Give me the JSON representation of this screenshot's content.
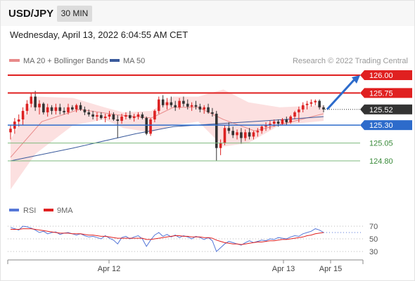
{
  "header": {
    "symbol": "USD/JPY",
    "timeframe": "30 MIN"
  },
  "datetime": "Wednesday, April 13, 2022 6:04:55 AM CET",
  "legend": {
    "ma20": "MA 20 + Bollinger Bands",
    "ma50": "MA 50"
  },
  "copyright": "Research © 2022 Trading Central",
  "colors": {
    "bull": "#dd2222",
    "bear": "#333333",
    "ma50": "#3a5a9c",
    "ma20": "#e88a8a",
    "band": "#fbdada",
    "resistance": "#e02020",
    "support": "#2d6bcb",
    "secondary": "#7cba7c",
    "current": "#333333",
    "rsi": "#5577d8",
    "ma9": "#e02020"
  },
  "chart_data": [
    {
      "type": "line",
      "price_levels": [
        {
          "value": 126.0,
          "label": "126.00",
          "role": "target"
        },
        {
          "value": 125.75,
          "label": "125.75",
          "role": "resistance"
        },
        {
          "value": 125.52,
          "label": "125.52",
          "role": "last price"
        },
        {
          "value": 125.3,
          "label": "125.30",
          "role": "pivot"
        },
        {
          "value": 125.05,
          "label": "125.05",
          "role": "support"
        },
        {
          "value": 124.8,
          "label": "124.80",
          "role": "support"
        }
      ],
      "x_ticks": [
        "Apr 12",
        "Apr 13",
        "Apr 15"
      ],
      "candles": [
        [
          125.2,
          125.3,
          125.1,
          125.25
        ],
        [
          125.25,
          125.4,
          125.18,
          125.35
        ],
        [
          125.35,
          125.45,
          125.28,
          125.38
        ],
        [
          125.38,
          125.55,
          125.3,
          125.5
        ],
        [
          125.5,
          125.65,
          125.45,
          125.6
        ],
        [
          125.6,
          125.75,
          125.55,
          125.7
        ],
        [
          125.7,
          125.78,
          125.5,
          125.55
        ],
        [
          125.55,
          125.65,
          125.45,
          125.6
        ],
        [
          125.6,
          125.62,
          125.45,
          125.48
        ],
        [
          125.48,
          125.6,
          125.42,
          125.55
        ],
        [
          125.55,
          125.58,
          125.45,
          125.5
        ],
        [
          125.5,
          125.6,
          125.45,
          125.55
        ],
        [
          125.55,
          125.6,
          125.45,
          125.5
        ],
        [
          125.5,
          125.55,
          125.45,
          125.48
        ],
        [
          125.48,
          125.6,
          125.45,
          125.55
        ],
        [
          125.55,
          125.58,
          125.5,
          125.52
        ],
        [
          125.52,
          125.6,
          125.48,
          125.58
        ],
        [
          125.58,
          125.62,
          125.5,
          125.52
        ],
        [
          125.52,
          125.56,
          125.44,
          125.48
        ],
        [
          125.48,
          125.52,
          125.42,
          125.45
        ],
        [
          125.45,
          125.5,
          125.38,
          125.42
        ],
        [
          125.42,
          125.48,
          125.36,
          125.44
        ],
        [
          125.44,
          125.48,
          125.38,
          125.4
        ],
        [
          125.4,
          125.46,
          125.34,
          125.42
        ],
        [
          125.42,
          125.5,
          125.38,
          125.45
        ],
        [
          125.45,
          125.48,
          125.36,
          125.38
        ],
        [
          125.38,
          125.44,
          125.12,
          125.36
        ],
        [
          125.36,
          125.46,
          125.32,
          125.42
        ],
        [
          125.42,
          125.48,
          125.38,
          125.44
        ],
        [
          125.44,
          125.5,
          125.38,
          125.4
        ],
        [
          125.4,
          125.46,
          125.35,
          125.42
        ],
        [
          125.42,
          125.48,
          125.38,
          125.45
        ],
        [
          125.45,
          125.48,
          125.38,
          125.4
        ],
        [
          125.4,
          125.42,
          125.16,
          125.18
        ],
        [
          125.18,
          125.4,
          125.15,
          125.38
        ],
        [
          125.38,
          125.52,
          125.34,
          125.5
        ],
        [
          125.5,
          125.7,
          125.46,
          125.66
        ],
        [
          125.66,
          125.72,
          125.55,
          125.58
        ],
        [
          125.58,
          125.68,
          125.52,
          125.62
        ],
        [
          125.62,
          125.7,
          125.55,
          125.58
        ],
        [
          125.58,
          125.64,
          125.5,
          125.55
        ],
        [
          125.55,
          125.68,
          125.52,
          125.64
        ],
        [
          125.64,
          125.7,
          125.56,
          125.6
        ],
        [
          125.6,
          125.66,
          125.52,
          125.56
        ],
        [
          125.56,
          125.62,
          125.5,
          125.58
        ],
        [
          125.58,
          125.64,
          125.52,
          125.56
        ],
        [
          125.56,
          125.6,
          125.48,
          125.52
        ],
        [
          125.52,
          125.58,
          125.46,
          125.55
        ],
        [
          125.55,
          125.6,
          125.46,
          125.48
        ],
        [
          125.48,
          125.54,
          125.42,
          125.46
        ],
        [
          125.46,
          125.5,
          124.8,
          124.98
        ],
        [
          124.98,
          125.1,
          124.88,
          125.05
        ],
        [
          125.05,
          125.3,
          125.02,
          125.26
        ],
        [
          125.26,
          125.34,
          125.18,
          125.22
        ],
        [
          125.22,
          125.28,
          125.12,
          125.16
        ],
        [
          125.16,
          125.24,
          125.1,
          125.2
        ],
        [
          125.2,
          125.26,
          125.04,
          125.12
        ],
        [
          125.12,
          125.24,
          125.08,
          125.2
        ],
        [
          125.2,
          125.26,
          125.1,
          125.14
        ],
        [
          125.14,
          125.22,
          125.1,
          125.2
        ],
        [
          125.2,
          125.26,
          125.14,
          125.22
        ],
        [
          125.22,
          125.3,
          125.18,
          125.28
        ],
        [
          125.28,
          125.34,
          125.22,
          125.3
        ],
        [
          125.3,
          125.36,
          125.24,
          125.32
        ],
        [
          125.32,
          125.38,
          125.28,
          125.35
        ],
        [
          125.35,
          125.38,
          125.28,
          125.32
        ],
        [
          125.32,
          125.4,
          125.3,
          125.38
        ],
        [
          125.38,
          125.42,
          125.3,
          125.34
        ],
        [
          125.34,
          125.44,
          125.32,
          125.42
        ],
        [
          125.42,
          125.5,
          125.38,
          125.48
        ],
        [
          125.48,
          125.56,
          125.34,
          125.52
        ],
        [
          125.52,
          125.62,
          125.48,
          125.58
        ],
        [
          125.58,
          125.64,
          125.52,
          125.6
        ],
        [
          125.6,
          125.66,
          125.56,
          125.62
        ],
        [
          125.62,
          125.66,
          125.58,
          125.64
        ],
        [
          125.64,
          125.66,
          125.52,
          125.55
        ],
        [
          125.55,
          125.58,
          125.48,
          125.52
        ]
      ],
      "ma50_points": [
        [
          0,
          124.8
        ],
        [
          0.2,
          124.98
        ],
        [
          0.4,
          125.18
        ],
        [
          0.52,
          125.28
        ],
        [
          0.7,
          125.33
        ],
        [
          0.88,
          125.38
        ],
        [
          1.0,
          125.42
        ]
      ],
      "ma20_points": [
        [
          0,
          124.85
        ],
        [
          0.04,
          125.05
        ],
        [
          0.1,
          125.35
        ],
        [
          0.22,
          125.52
        ],
        [
          0.35,
          125.44
        ],
        [
          0.45,
          125.4
        ],
        [
          0.52,
          125.55
        ],
        [
          0.6,
          125.55
        ],
        [
          0.68,
          125.38
        ],
        [
          0.78,
          125.22
        ],
        [
          0.9,
          125.35
        ],
        [
          1.0,
          125.46
        ]
      ],
      "band_upper": [
        [
          0,
          125.1
        ],
        [
          0.08,
          125.7
        ],
        [
          0.2,
          125.68
        ],
        [
          0.3,
          125.55
        ],
        [
          0.36,
          125.48
        ],
        [
          0.45,
          125.5
        ],
        [
          0.52,
          125.7
        ],
        [
          0.6,
          125.7
        ],
        [
          0.68,
          125.8
        ],
        [
          0.76,
          125.62
        ],
        [
          0.86,
          125.55
        ],
        [
          1.0,
          125.58
        ]
      ],
      "band_lower": [
        [
          0,
          124.4
        ],
        [
          0.08,
          124.9
        ],
        [
          0.2,
          125.3
        ],
        [
          0.3,
          125.38
        ],
        [
          0.36,
          125.26
        ],
        [
          0.45,
          125.2
        ],
        [
          0.52,
          125.3
        ],
        [
          0.6,
          125.35
        ],
        [
          0.68,
          125.0
        ],
        [
          0.76,
          125.05
        ],
        [
          0.86,
          125.3
        ],
        [
          1.0,
          125.36
        ]
      ],
      "forecast_arrow": {
        "from": 125.52,
        "to": 126.0
      }
    },
    {
      "type": "line",
      "series": [
        {
          "name": "RSI"
        },
        {
          "name": "9MA"
        }
      ],
      "y_ticks": [
        70,
        50,
        30
      ],
      "ylim": [
        20,
        80
      ],
      "rsi": [
        68,
        66,
        64,
        70,
        69,
        67,
        64,
        60,
        62,
        58,
        60,
        61,
        57,
        59,
        60,
        58,
        56,
        58,
        55,
        53,
        54,
        52,
        50,
        55,
        51,
        48,
        42,
        52,
        54,
        50,
        53,
        55,
        50,
        38,
        48,
        56,
        60,
        54,
        57,
        53,
        56,
        52,
        55,
        53,
        50,
        54,
        52,
        49,
        52,
        47,
        30,
        36,
        42,
        46,
        44,
        42,
        40,
        44,
        47,
        44,
        46,
        48,
        47,
        50,
        49,
        52,
        51,
        50,
        53,
        55,
        54,
        58,
        60,
        62,
        66,
        64,
        60
      ],
      "ma9": [
        65,
        65,
        65,
        66,
        66,
        66,
        65,
        64,
        63,
        62,
        61,
        60,
        59,
        59,
        59,
        58,
        58,
        58,
        57,
        56,
        56,
        55,
        54,
        54,
        53,
        52,
        51,
        51,
        51,
        51,
        51,
        51,
        51,
        49,
        49,
        50,
        51,
        52,
        53,
        54,
        55,
        55,
        54,
        54,
        53,
        53,
        53,
        52,
        52,
        51,
        48,
        46,
        44,
        43,
        42,
        42,
        41,
        42,
        43,
        44,
        45,
        45,
        46,
        47,
        47,
        48,
        49,
        49,
        50,
        51,
        52,
        53,
        55,
        56,
        58,
        59,
        60
      ]
    }
  ]
}
